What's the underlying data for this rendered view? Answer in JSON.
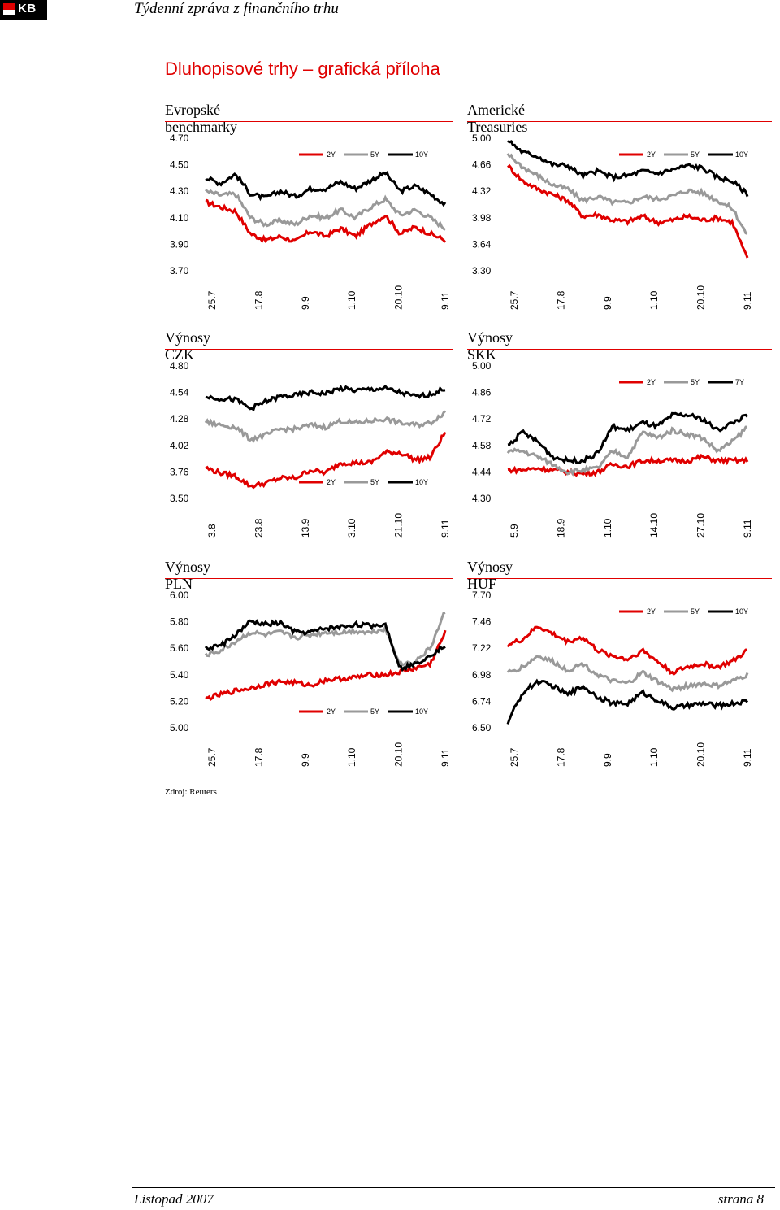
{
  "header": {
    "logo_text": "KB",
    "title": "Týdenní zpráva z finančního trhu"
  },
  "main_title": "Dluhopisové trhy – grafická příloha",
  "colors": {
    "2Y": "#e00000",
    "5Y": "#999999",
    "10Y": "#000000",
    "title_red": "#e00000"
  },
  "charts": [
    {
      "title": "Evropské benchmarky",
      "chart_data": {
        "type": "line",
        "yticks": [
          "4.70",
          "4.50",
          "4.30",
          "4.10",
          "3.90",
          "3.70"
        ],
        "ylim": [
          3.7,
          4.7
        ],
        "xticks": [
          "25.7",
          "17.8",
          "9.9",
          "1.10",
          "20.10",
          "9.11"
        ],
        "legend": "top-right",
        "series": [
          {
            "name": "2Y",
            "values": [
              4.22,
              4.18,
              4.15,
              3.98,
              3.93,
              3.96,
              3.92,
              4.0,
              3.96,
              4.02,
              3.96,
              4.05,
              4.12,
              3.98,
              4.03,
              3.98,
              3.93
            ]
          },
          {
            "name": "5Y",
            "values": [
              4.3,
              4.27,
              4.28,
              4.1,
              4.05,
              4.08,
              4.05,
              4.12,
              4.1,
              4.16,
              4.1,
              4.18,
              4.24,
              4.12,
              4.16,
              4.1,
              4.02
            ]
          },
          {
            "name": "10Y",
            "values": [
              4.4,
              4.36,
              4.43,
              4.28,
              4.25,
              4.3,
              4.26,
              4.32,
              4.32,
              4.37,
              4.32,
              4.38,
              4.44,
              4.3,
              4.34,
              4.28,
              4.2
            ]
          }
        ]
      }
    },
    {
      "title": "Americké Treasuries",
      "chart_data": {
        "type": "line",
        "yticks": [
          "5.00",
          "4.66",
          "4.32",
          "3.98",
          "3.64",
          "3.30"
        ],
        "ylim": [
          3.3,
          5.0
        ],
        "xticks": [
          "25.7",
          "17.8",
          "9.9",
          "1.10",
          "20.10",
          "9.11"
        ],
        "legend": "top-right",
        "series": [
          {
            "name": "2Y",
            "values": [
              4.65,
              4.45,
              4.35,
              4.28,
              4.2,
              4.0,
              4.02,
              3.95,
              3.93,
              4.0,
              3.92,
              3.95,
              4.0,
              3.95,
              3.98,
              3.92,
              3.45
            ]
          },
          {
            "name": "5Y",
            "values": [
              4.8,
              4.63,
              4.52,
              4.4,
              4.35,
              4.2,
              4.25,
              4.18,
              4.17,
              4.25,
              4.22,
              4.26,
              4.33,
              4.3,
              4.2,
              4.1,
              3.75
            ]
          },
          {
            "name": "10Y",
            "values": [
              4.98,
              4.82,
              4.77,
              4.66,
              4.65,
              4.52,
              4.58,
              4.5,
              4.52,
              4.58,
              4.55,
              4.6,
              4.65,
              4.62,
              4.5,
              4.45,
              4.28
            ]
          }
        ]
      }
    },
    {
      "title": "Výnosy CZK",
      "chart_data": {
        "type": "line",
        "yticks": [
          "4.80",
          "4.54",
          "4.28",
          "4.02",
          "3.76",
          "3.50"
        ],
        "ylim": [
          3.5,
          4.8
        ],
        "xticks": [
          "3.8",
          "23.8",
          "13.9",
          "3.10",
          "21.10",
          "9.11"
        ],
        "legend": "bottom-right",
        "series": [
          {
            "name": "2Y",
            "values": [
              3.8,
              3.75,
              3.72,
              3.62,
              3.65,
              3.7,
              3.7,
              3.78,
              3.75,
              3.85,
              3.85,
              3.85,
              3.95,
              3.95,
              3.88,
              3.9,
              4.15
            ]
          },
          {
            "name": "5Y",
            "values": [
              4.25,
              4.22,
              4.2,
              4.08,
              4.12,
              4.18,
              4.18,
              4.22,
              4.2,
              4.26,
              4.24,
              4.26,
              4.28,
              4.24,
              4.22,
              4.24,
              4.35
            ]
          },
          {
            "name": "10Y",
            "values": [
              4.5,
              4.48,
              4.47,
              4.38,
              4.45,
              4.5,
              4.51,
              4.54,
              4.53,
              4.58,
              4.56,
              4.57,
              4.58,
              4.54,
              4.5,
              4.52,
              4.58
            ]
          }
        ]
      }
    },
    {
      "title": "Výnosy SKK",
      "chart_data": {
        "type": "line",
        "yticks": [
          "5.00",
          "4.86",
          "4.72",
          "4.58",
          "4.44",
          "4.30"
        ],
        "ylim": [
          4.3,
          5.0
        ],
        "xticks": [
          "5.9",
          "18.9",
          "1.10",
          "14.10",
          "27.10",
          "9.11"
        ],
        "legend": "top-right",
        "series": [
          {
            "name": "2Y",
            "values": [
              4.45,
              4.45,
              4.46,
              4.45,
              4.44,
              4.43,
              4.44,
              4.48,
              4.47,
              4.5,
              4.5,
              4.5,
              4.5,
              4.52,
              4.5,
              4.5,
              4.5
            ]
          },
          {
            "name": "5Y",
            "values": [
              4.55,
              4.55,
              4.52,
              4.48,
              4.44,
              4.45,
              4.46,
              4.55,
              4.52,
              4.65,
              4.62,
              4.66,
              4.64,
              4.62,
              4.55,
              4.6,
              4.68
            ]
          },
          {
            "name": "7Y",
            "values": [
              4.58,
              4.65,
              4.6,
              4.52,
              4.5,
              4.5,
              4.54,
              4.68,
              4.66,
              4.7,
              4.68,
              4.74,
              4.74,
              4.72,
              4.66,
              4.7,
              4.74
            ]
          }
        ]
      }
    },
    {
      "title": "Výnosy PLN",
      "chart_data": {
        "type": "line",
        "yticks": [
          "6.00",
          "5.80",
          "5.60",
          "5.40",
          "5.20",
          "5.00"
        ],
        "ylim": [
          5.0,
          6.0
        ],
        "xticks": [
          "25.7",
          "17.8",
          "9.9",
          "1.10",
          "20.10",
          "9.11"
        ],
        "legend": "bottom-right",
        "series": [
          {
            "name": "2Y",
            "values": [
              5.22,
              5.25,
              5.28,
              5.3,
              5.33,
              5.35,
              5.34,
              5.32,
              5.36,
              5.37,
              5.38,
              5.4,
              5.4,
              5.42,
              5.45,
              5.48,
              5.72
            ]
          },
          {
            "name": "5Y",
            "values": [
              5.55,
              5.58,
              5.65,
              5.72,
              5.7,
              5.72,
              5.68,
              5.7,
              5.72,
              5.72,
              5.73,
              5.72,
              5.75,
              5.48,
              5.5,
              5.6,
              5.88
            ]
          },
          {
            "name": "10Y",
            "values": [
              5.6,
              5.62,
              5.7,
              5.8,
              5.78,
              5.79,
              5.72,
              5.72,
              5.75,
              5.76,
              5.78,
              5.77,
              5.78,
              5.45,
              5.48,
              5.55,
              5.62
            ]
          }
        ]
      }
    },
    {
      "title": "Výnosy HUF",
      "chart_data": {
        "type": "line",
        "yticks": [
          "7.70",
          "7.46",
          "7.22",
          "6.98",
          "6.74",
          "6.50"
        ],
        "ylim": [
          6.5,
          7.7
        ],
        "xticks": [
          "25.7",
          "17.8",
          "9.9",
          "1.10",
          "20.10",
          "9.11"
        ],
        "legend": "top-right",
        "series": [
          {
            "name": "2Y",
            "values": [
              7.25,
              7.3,
              7.42,
              7.35,
              7.28,
              7.32,
              7.2,
              7.15,
              7.12,
              7.2,
              7.1,
              7.0,
              7.05,
              7.08,
              7.05,
              7.1,
              7.2
            ]
          },
          {
            "name": "5Y",
            "values": [
              7.0,
              7.05,
              7.15,
              7.1,
              7.02,
              7.08,
              6.98,
              6.92,
              6.9,
              7.0,
              6.92,
              6.85,
              6.88,
              6.9,
              6.88,
              6.92,
              6.98
            ]
          },
          {
            "name": "10Y",
            "values": [
              6.55,
              6.82,
              6.92,
              6.88,
              6.8,
              6.88,
              6.78,
              6.72,
              6.72,
              6.82,
              6.75,
              6.68,
              6.7,
              6.72,
              6.7,
              6.72,
              6.74
            ]
          }
        ]
      }
    }
  ],
  "source": "Zdroj: Reuters",
  "footer": {
    "left": "Listopad 2007",
    "right": "strana 8"
  }
}
